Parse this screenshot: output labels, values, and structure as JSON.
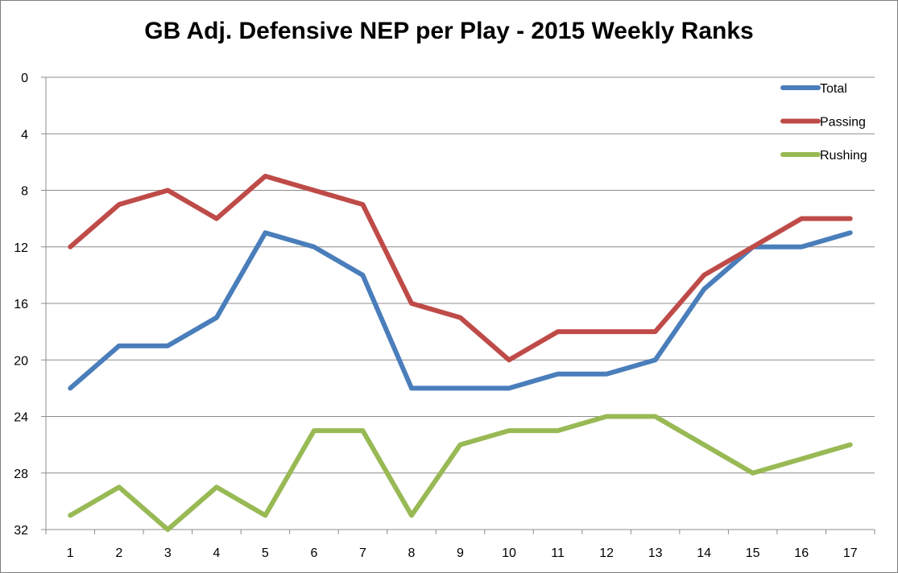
{
  "chart_data": {
    "type": "line",
    "title": "GB Adj. Defensive NEP per Play - 2015 Weekly Ranks",
    "xlabel": "",
    "ylabel": "",
    "categories": [
      "1",
      "2",
      "3",
      "4",
      "5",
      "6",
      "7",
      "8",
      "9",
      "10",
      "11",
      "12",
      "13",
      "14",
      "15",
      "16",
      "17"
    ],
    "y_ticks": [
      "0",
      "4",
      "8",
      "12",
      "16",
      "20",
      "24",
      "28",
      "32"
    ],
    "ylim": [
      0,
      32
    ],
    "y_inverted": true,
    "grid": "horizontal",
    "legend_position": "top-right",
    "series": [
      {
        "name": "Total",
        "color": "#4a7ebb",
        "values": [
          22,
          19,
          19,
          17,
          11,
          12,
          14,
          22,
          22,
          22,
          21,
          21,
          20,
          15,
          12,
          12,
          11
        ]
      },
      {
        "name": "Passing",
        "color": "#be4b48",
        "values": [
          12,
          9,
          8,
          10,
          7,
          8,
          9,
          16,
          17,
          20,
          18,
          18,
          18,
          14,
          12,
          10,
          10
        ]
      },
      {
        "name": "Rushing",
        "color": "#98b954",
        "values": [
          31,
          29,
          32,
          29,
          31,
          25,
          25,
          31,
          26,
          25,
          25,
          24,
          24,
          26,
          28,
          27,
          26
        ]
      }
    ]
  }
}
